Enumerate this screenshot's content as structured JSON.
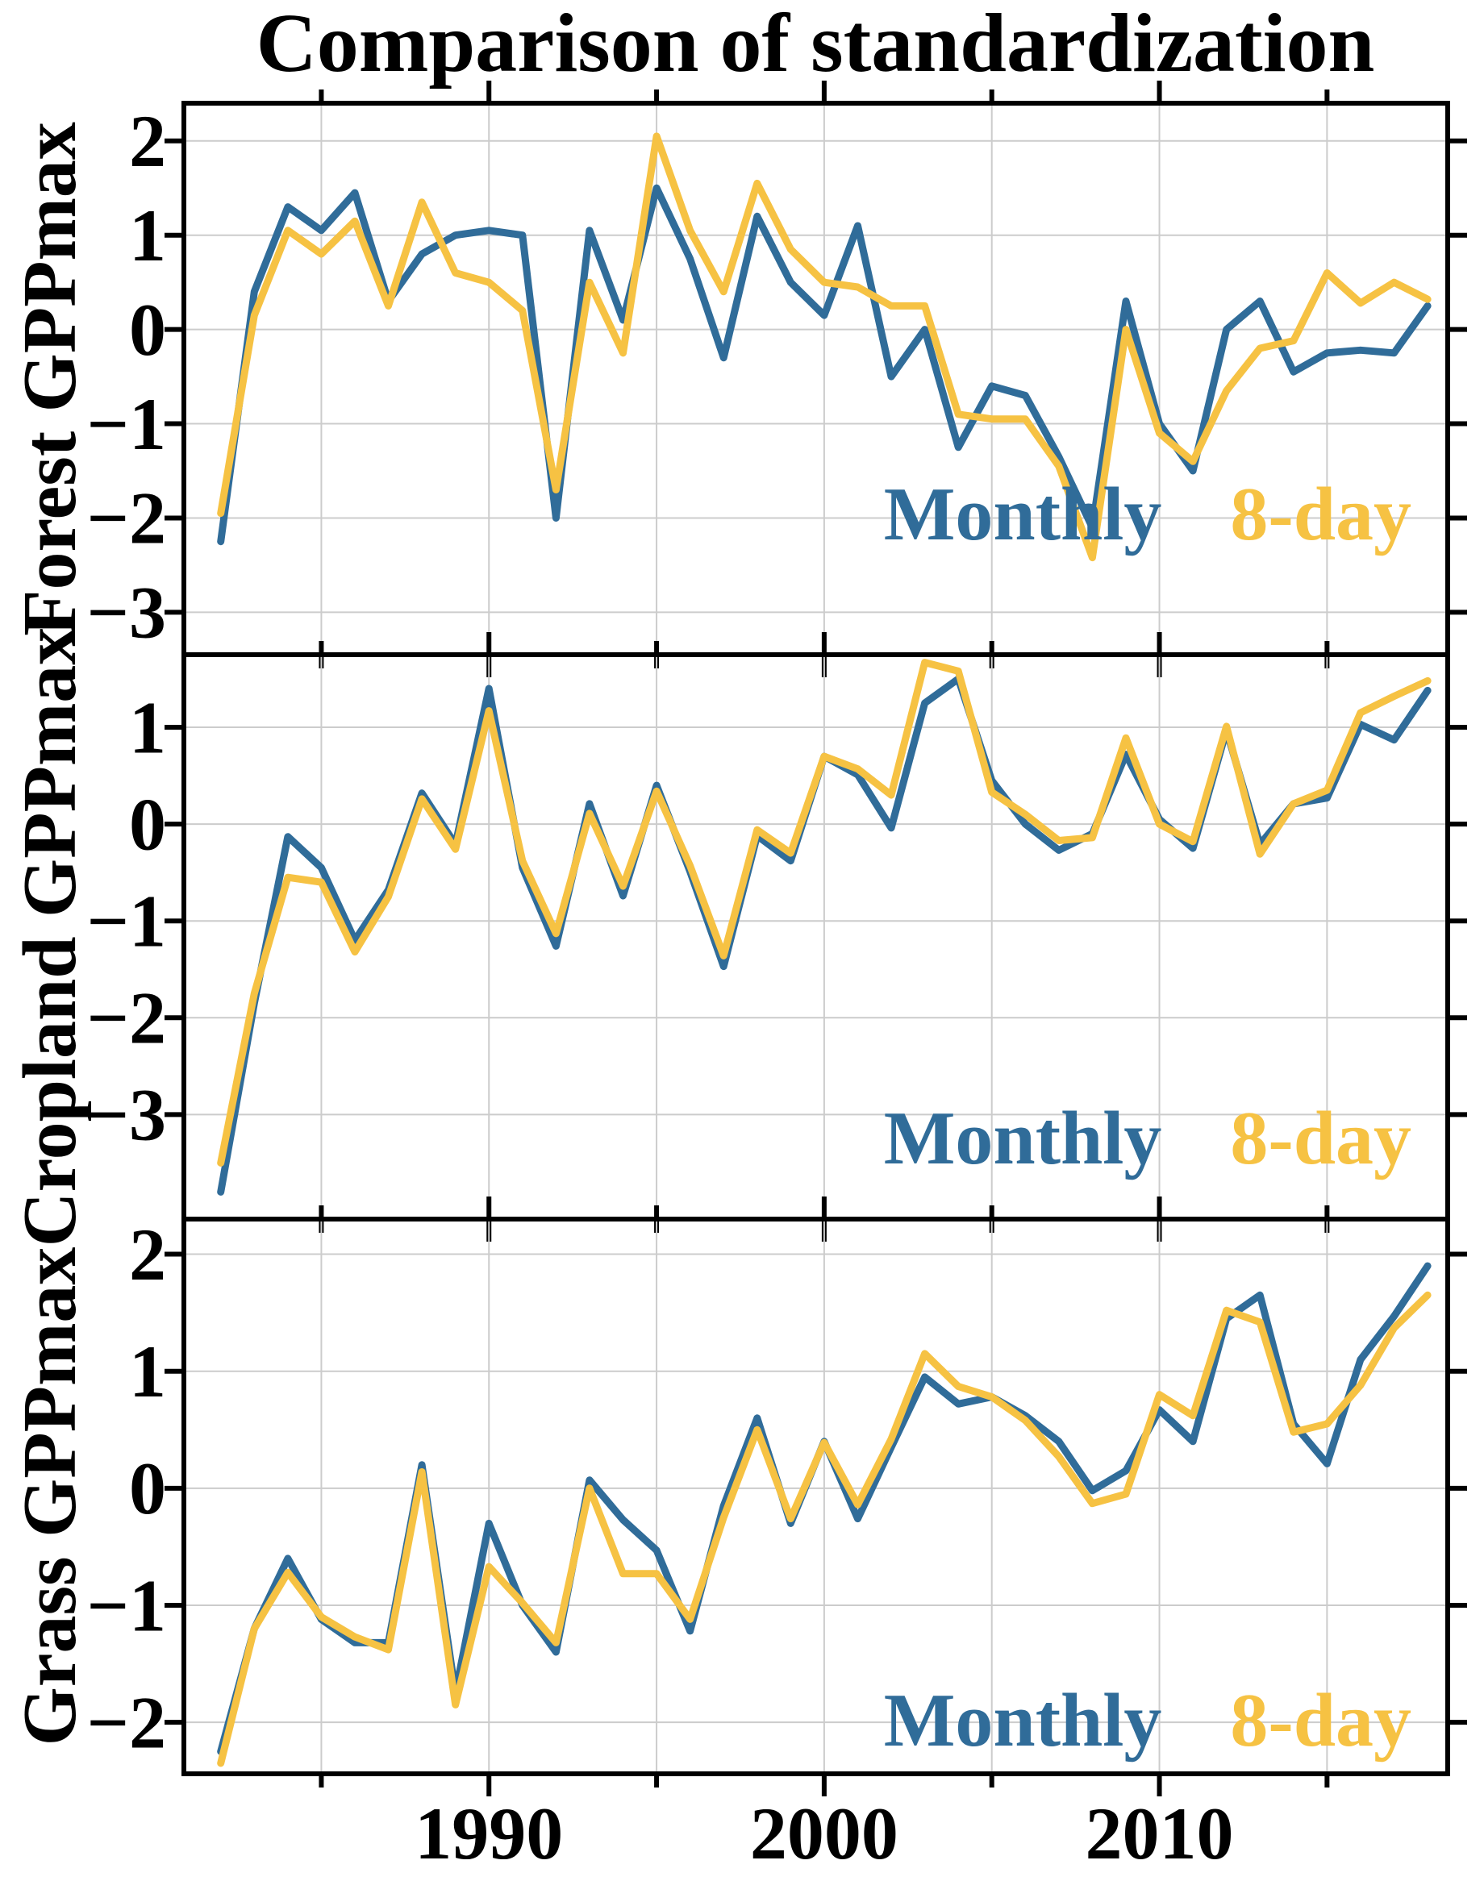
{
  "title": "Comparison of standardization",
  "legend": {
    "monthly_label": "Monthly",
    "eight_day_label": "8-day"
  },
  "colors": {
    "monthly": "#306c99",
    "eight_day": "#f6c243",
    "grid": "#cccccc",
    "axis": "#000000",
    "text": "#000000"
  },
  "x_axis": {
    "xlim": [
      1980.9,
      2018.6
    ],
    "major_tick_years": [
      1990,
      2000,
      2010
    ],
    "major_tick_labels": [
      "1990",
      "2000",
      "2010"
    ],
    "minor_tick_years": [
      1985,
      1995,
      2005,
      2015
    ]
  },
  "years": [
    1982,
    1983,
    1984,
    1985,
    1986,
    1987,
    1988,
    1989,
    1990,
    1991,
    1992,
    1993,
    1994,
    1995,
    1996,
    1997,
    1998,
    1999,
    2000,
    2001,
    2002,
    2003,
    2004,
    2005,
    2006,
    2007,
    2008,
    2009,
    2010,
    2011,
    2012,
    2013,
    2014,
    2015,
    2016,
    2017,
    2018
  ],
  "chart_data": [
    {
      "type": "line",
      "id": "forest",
      "ylabel": "Forest GPPmax",
      "ylim": [
        -3.45,
        2.4
      ],
      "ytick_values": [
        2,
        1,
        0,
        -1,
        -2,
        -3
      ],
      "ytick_labels": [
        "2",
        "1",
        "0",
        "−1",
        "−2",
        "−3"
      ],
      "grid": true,
      "legend_position": "bottom-right",
      "series": [
        {
          "name": "Monthly",
          "values": [
            -2.25,
            0.4,
            1.3,
            1.05,
            1.45,
            0.3,
            0.8,
            1.0,
            1.05,
            1.0,
            -2.0,
            1.05,
            0.1,
            1.5,
            0.75,
            -0.3,
            1.2,
            0.5,
            0.15,
            1.1,
            -0.5,
            0.0,
            -1.25,
            -0.6,
            -0.7,
            -1.35,
            -2.1,
            0.3,
            -1.0,
            -1.5,
            0.0,
            0.3,
            -0.45,
            -0.25,
            -0.22,
            -0.25,
            0.25
          ]
        },
        {
          "name": "8-day",
          "values": [
            -1.95,
            0.15,
            1.05,
            0.8,
            1.15,
            0.25,
            1.35,
            0.6,
            0.5,
            0.2,
            -1.7,
            0.5,
            -0.25,
            2.05,
            1.05,
            0.4,
            1.55,
            0.85,
            0.5,
            0.45,
            0.25,
            0.25,
            -0.9,
            -0.95,
            -0.95,
            -1.45,
            -2.42,
            0.0,
            -1.1,
            -1.4,
            -0.65,
            -0.2,
            -0.12,
            0.6,
            0.28,
            0.5,
            0.32
          ]
        }
      ]
    },
    {
      "type": "line",
      "id": "cropland",
      "ylabel": "Cropland GPPmax",
      "ylim": [
        -4.08,
        1.75
      ],
      "ytick_values": [
        1,
        0,
        -1,
        -2,
        -3
      ],
      "ytick_labels": [
        "1",
        "0",
        "−1",
        "−2",
        "−3"
      ],
      "grid": true,
      "legend_position": "bottom-right",
      "series": [
        {
          "name": "Monthly",
          "values": [
            -3.8,
            -1.85,
            -0.13,
            -0.45,
            -1.2,
            -0.68,
            0.32,
            -0.21,
            1.4,
            -0.45,
            -1.26,
            0.21,
            -0.74,
            0.4,
            -0.49,
            -1.47,
            -0.12,
            -0.38,
            0.7,
            0.51,
            -0.04,
            1.25,
            1.5,
            0.45,
            0.0,
            -0.27,
            -0.1,
            0.72,
            0.05,
            -0.25,
            0.97,
            -0.21,
            0.21,
            0.27,
            1.03,
            0.87,
            1.38
          ]
        },
        {
          "name": "8-day",
          "values": [
            -3.5,
            -1.75,
            -0.55,
            -0.6,
            -1.32,
            -0.75,
            0.26,
            -0.26,
            1.17,
            -0.38,
            -1.13,
            0.11,
            -0.64,
            0.34,
            -0.43,
            -1.36,
            -0.06,
            -0.3,
            0.7,
            0.57,
            0.3,
            1.67,
            1.58,
            0.33,
            0.1,
            -0.17,
            -0.14,
            0.89,
            0.0,
            -0.18,
            1.01,
            -0.31,
            0.21,
            0.35,
            1.15,
            1.32,
            1.48
          ]
        }
      ]
    },
    {
      "type": "line",
      "id": "grass",
      "ylabel": "Grass GPPmax",
      "ylim": [
        -2.44,
        2.3
      ],
      "ytick_values": [
        2,
        1,
        0,
        -1,
        -2
      ],
      "ytick_labels": [
        "2",
        "1",
        "0",
        "−1",
        "−2"
      ],
      "grid": true,
      "legend_position": "bottom-right",
      "series": [
        {
          "name": "Monthly",
          "values": [
            -2.25,
            -1.2,
            -0.6,
            -1.12,
            -1.32,
            -1.32,
            0.2,
            -1.75,
            -0.3,
            -1.0,
            -1.4,
            0.07,
            -0.27,
            -0.53,
            -1.22,
            -0.15,
            0.6,
            -0.3,
            0.4,
            -0.26,
            0.35,
            0.95,
            0.72,
            0.78,
            0.62,
            0.4,
            -0.02,
            0.15,
            0.67,
            0.4,
            1.45,
            1.65,
            0.55,
            0.21,
            1.1,
            1.47,
            1.9
          ]
        },
        {
          "name": "8-day",
          "values": [
            -2.35,
            -1.2,
            -0.72,
            -1.1,
            -1.27,
            -1.38,
            0.14,
            -1.85,
            -0.67,
            -0.98,
            -1.32,
            0.0,
            -0.73,
            -0.73,
            -1.12,
            -0.25,
            0.5,
            -0.26,
            0.39,
            -0.14,
            0.42,
            1.15,
            0.87,
            0.78,
            0.58,
            0.27,
            -0.13,
            -0.05,
            0.8,
            0.62,
            1.52,
            1.42,
            0.48,
            0.55,
            0.88,
            1.37,
            1.65
          ]
        }
      ]
    }
  ]
}
